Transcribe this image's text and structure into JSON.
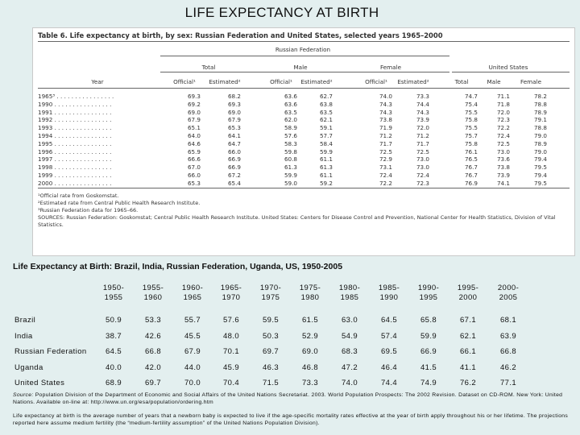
{
  "slide_title": "LIFE EXPECTANCY AT BIRTH",
  "table_image": {
    "title": "Table 6. Life expectancy at birth, by sex: Russian Federation and United States, selected years 1965–2000",
    "group_russia": "Russian Federation",
    "group_us": "United States",
    "sub_total": "Total",
    "sub_male": "Male",
    "sub_female": "Female",
    "col_year": "Year",
    "cols": [
      "Official¹",
      "Estimated²",
      "Official¹",
      "Estimated²",
      "Official¹",
      "Estimated²",
      "Total",
      "Male",
      "Female"
    ],
    "rows": [
      {
        "year": "1965³ . . . . . . . . . . . . . . . .",
        "v": [
          "69.3",
          "68.2",
          "63.6",
          "62.7",
          "74.0",
          "73.3",
          "74.7",
          "71.1",
          "78.2"
        ]
      },
      {
        "year": "1990 . . . . . . . . . . . . . . . .",
        "v": [
          "69.2",
          "69.3",
          "63.6",
          "63.8",
          "74.3",
          "74.4",
          "75.4",
          "71.8",
          "78.8"
        ]
      },
      {
        "year": "1991 . . . . . . . . . . . . . . . .",
        "v": [
          "69.0",
          "69.0",
          "63.5",
          "63.5",
          "74.3",
          "74.3",
          "75.5",
          "72.0",
          "78.9"
        ]
      },
      {
        "year": "1992 . . . . . . . . . . . . . . . .",
        "v": [
          "67.9",
          "67.9",
          "62.0",
          "62.1",
          "73.8",
          "73.9",
          "75.8",
          "72.3",
          "79.1"
        ]
      },
      {
        "year": "1993 . . . . . . . . . . . . . . . .",
        "v": [
          "65.1",
          "65.3",
          "58.9",
          "59.1",
          "71.9",
          "72.0",
          "75.5",
          "72.2",
          "78.8"
        ]
      },
      {
        "year": "1994 . . . . . . . . . . . . . . . .",
        "v": [
          "64.0",
          "64.1",
          "57.6",
          "57.7",
          "71.2",
          "71.2",
          "75.7",
          "72.4",
          "79.0"
        ]
      },
      {
        "year": "1995 . . . . . . . . . . . . . . . .",
        "v": [
          "64.6",
          "64.7",
          "58.3",
          "58.4",
          "71.7",
          "71.7",
          "75.8",
          "72.5",
          "78.9"
        ]
      },
      {
        "year": "1996 . . . . . . . . . . . . . . . .",
        "v": [
          "65.9",
          "66.0",
          "59.8",
          "59.9",
          "72.5",
          "72.5",
          "76.1",
          "73.0",
          "79.0"
        ]
      },
      {
        "year": "1997 . . . . . . . . . . . . . . . .",
        "v": [
          "66.6",
          "66.9",
          "60.8",
          "61.1",
          "72.9",
          "73.0",
          "76.5",
          "73.6",
          "79.4"
        ]
      },
      {
        "year": "1998 . . . . . . . . . . . . . . . .",
        "v": [
          "67.0",
          "66.9",
          "61.3",
          "61.3",
          "73.1",
          "73.0",
          "76.7",
          "73.8",
          "79.5"
        ]
      },
      {
        "year": "1999 . . . . . . . . . . . . . . . .",
        "v": [
          "66.0",
          "67.2",
          "59.9",
          "61.1",
          "72.4",
          "72.4",
          "76.7",
          "73.9",
          "79.4"
        ]
      },
      {
        "year": "2000 . . . . . . . . . . . . . . . .",
        "v": [
          "65.3",
          "65.4",
          "59.0",
          "59.2",
          "72.2",
          "72.3",
          "76.9",
          "74.1",
          "79.5"
        ]
      }
    ],
    "footnotes": [
      "¹Official rate from Goskomstat.",
      "²Estimated rate from Central Public Health Research Institute.",
      "³Russian Federation data for 1965–66.",
      "SOURCES: Russian Federation: Goskomstat; Central Public Health Research Institute. United States: Centers for Disease Control and Prevention, National Center for Health Statistics, Division of Vital",
      "Statistics."
    ]
  },
  "chart_data": {
    "type": "table",
    "title": "Life Expectancy at Birth: Brazil, India, Russian Federation, Uganda, US, 1950-2005",
    "columns": [
      [
        "1950-",
        "1955"
      ],
      [
        "1955-",
        "1960"
      ],
      [
        "1960-",
        "1965"
      ],
      [
        "1965-",
        "1970"
      ],
      [
        "1970-",
        "1975"
      ],
      [
        "1975-",
        "1980"
      ],
      [
        "1980-",
        "1985"
      ],
      [
        "1985-",
        "1990"
      ],
      [
        "1990-",
        "1995"
      ],
      [
        "1995-",
        "2000"
      ],
      [
        "2000-",
        "2005"
      ]
    ],
    "rows": [
      {
        "name": "Brazil",
        "values": [
          "50.9",
          "53.3",
          "55.7",
          "57.6",
          "59.5",
          "61.5",
          "63.0",
          "64.5",
          "65.8",
          "67.1",
          "68.1"
        ]
      },
      {
        "name": "India",
        "values": [
          "38.7",
          "42.6",
          "45.5",
          "48.0",
          "50.3",
          "52.9",
          "54.9",
          "57.4",
          "59.9",
          "62.1",
          "63.9"
        ]
      },
      {
        "name": "Russian Federation",
        "values": [
          "64.5",
          "66.8",
          "67.9",
          "70.1",
          "69.7",
          "69.0",
          "68.3",
          "69.5",
          "66.9",
          "66.1",
          "66.8"
        ]
      },
      {
        "name": "Uganda",
        "values": [
          "40.0",
          "42.0",
          "44.0",
          "45.9",
          "46.3",
          "46.8",
          "47.2",
          "46.4",
          "41.5",
          "41.1",
          "46.2"
        ]
      },
      {
        "name": "United States",
        "values": [
          "68.9",
          "69.7",
          "70.0",
          "70.4",
          "71.5",
          "73.3",
          "74.0",
          "74.4",
          "74.9",
          "76.2",
          "77.1"
        ]
      }
    ]
  },
  "source": {
    "label": "Source:",
    "text": " Population Division of the Department of Economic and Social Affairs of the United Nations Secretariat. 2003. World Population Prospects: The 2002 Revision. Dataset on CD-ROM. New York: United Nations. Available on-line at: http://www.un.org/esa/population/ordering.htm"
  },
  "note": "Life expectancy at birth is the average number of years that a newborn baby is expected to live if the age-specific mortality rates effective at the year of birth apply throughout his or her lifetime. The projections reported here assume medium fertility (the “medium-fertility assumption” of the United Nations Population Division)."
}
